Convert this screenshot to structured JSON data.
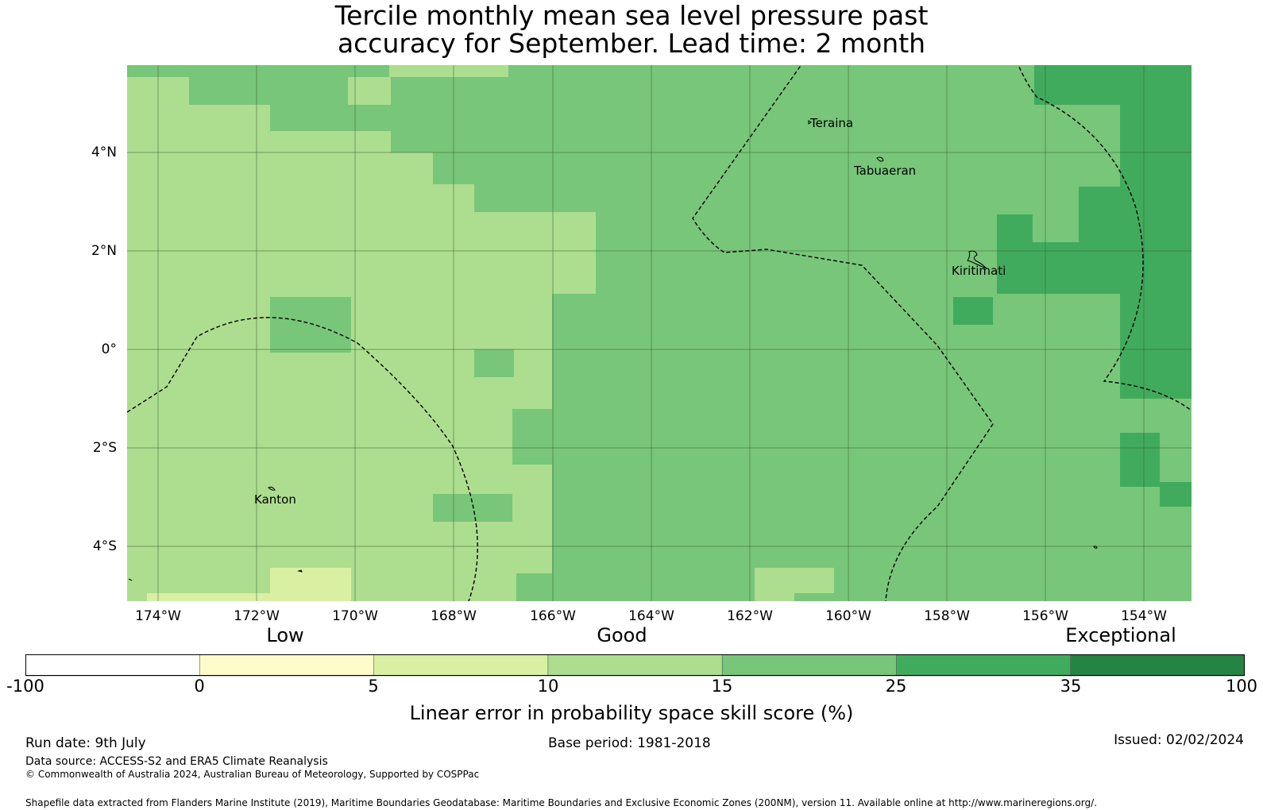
{
  "title_line1": "Tercile monthly mean sea level pressure past",
  "title_line2": "accuracy for September. Lead time: 2 month",
  "map": {
    "x_ticks": [
      "174°W",
      "172°W",
      "170°W",
      "168°W",
      "166°W",
      "164°W",
      "162°W",
      "160°W",
      "158°W",
      "156°W",
      "154°W"
    ],
    "y_ticks": [
      "4°N",
      "2°N",
      "0°",
      "2°S",
      "4°S"
    ],
    "places": [
      {
        "name": "Teraina"
      },
      {
        "name": "Tabuaeran"
      },
      {
        "name": "Kiritimati"
      },
      {
        "name": "Kanton"
      }
    ],
    "colors": {
      "background": "#ffffff",
      "grid": "#2e5a2e",
      "eez_boundary": "#000000"
    }
  },
  "colorbar": {
    "categories": [
      "Low",
      "Good",
      "Exceptional"
    ],
    "bins": [
      {
        "from": -100,
        "to": 0,
        "color": "#ffffff"
      },
      {
        "from": 0,
        "to": 5,
        "color": "#fefccb"
      },
      {
        "from": 5,
        "to": 10,
        "color": "#d9f0a3"
      },
      {
        "from": 10,
        "to": 15,
        "color": "#addd8e"
      },
      {
        "from": 15,
        "to": 25,
        "color": "#78c679"
      },
      {
        "from": 25,
        "to": 35,
        "color": "#41ab5d"
      },
      {
        "from": 35,
        "to": 100,
        "color": "#238443"
      }
    ],
    "tick_labels": [
      "-100",
      "0",
      "5",
      "10",
      "15",
      "25",
      "35",
      "100"
    ],
    "label": "Linear error in probability space skill score (%)"
  },
  "footer": {
    "run_date": "Run date: 9th July",
    "base_period": "Base period: 1981-2018",
    "issued": "Issued: 02/02/2024",
    "data_source": "Data source: ACCESS-S2 and ERA5 Climate Reanalysis",
    "copyright": "© Commonwealth of Australia 2024, Australian Bureau of Meteorology, Supported by COSPPac",
    "shapefile": "Shapefile data extracted from Flanders Marine Institute (2019), Maritime Boundaries Geodatabase: Maritime Boundaries and Exclusive Economic Zones (200NM), version 11. Available online at http://www.marineregions.org/."
  }
}
